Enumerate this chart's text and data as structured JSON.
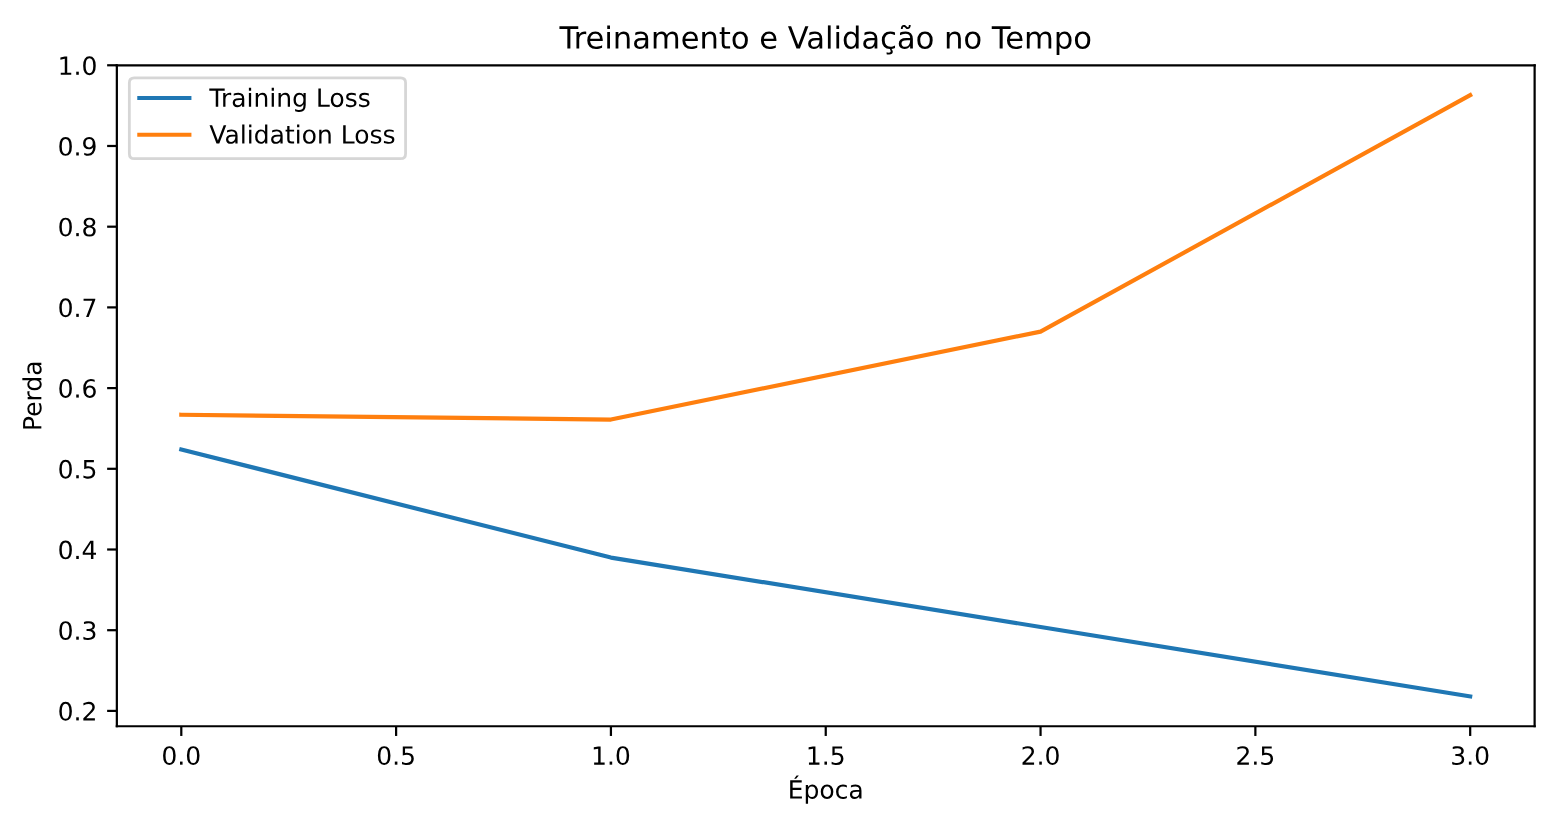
{
  "chart_data": {
    "type": "line",
    "title": "Treinamento e Validação no Tempo",
    "xlabel": "Época",
    "ylabel": "Perda",
    "x": [
      0,
      1,
      2,
      3
    ],
    "series": [
      {
        "name": "Training Loss",
        "color": "#1f77b4",
        "values": [
          0.524,
          0.39,
          0.304,
          0.218
        ]
      },
      {
        "name": "Validation Loss",
        "color": "#ff7f0e",
        "values": [
          0.567,
          0.561,
          0.67,
          0.963
        ]
      }
    ],
    "xlim": [
      -0.15,
      3.15
    ],
    "xticks": [
      {
        "value": 0,
        "label": "0.0"
      },
      0.5,
      {
        "value": 1,
        "label": "1.0"
      },
      1.5,
      {
        "value": 2,
        "label": "2.0"
      },
      2.5,
      {
        "value": 3,
        "label": "3.0"
      }
    ],
    "ylim": [
      0.181,
      1.0
    ],
    "yticks": [
      0.2,
      0.3,
      0.4,
      0.5,
      0.6,
      0.7,
      0.8,
      0.9,
      {
        "value": 1,
        "label": "1.0"
      }
    ],
    "legend": "top left",
    "grid": false,
    "marker": "none",
    "line_style": "solid"
  }
}
